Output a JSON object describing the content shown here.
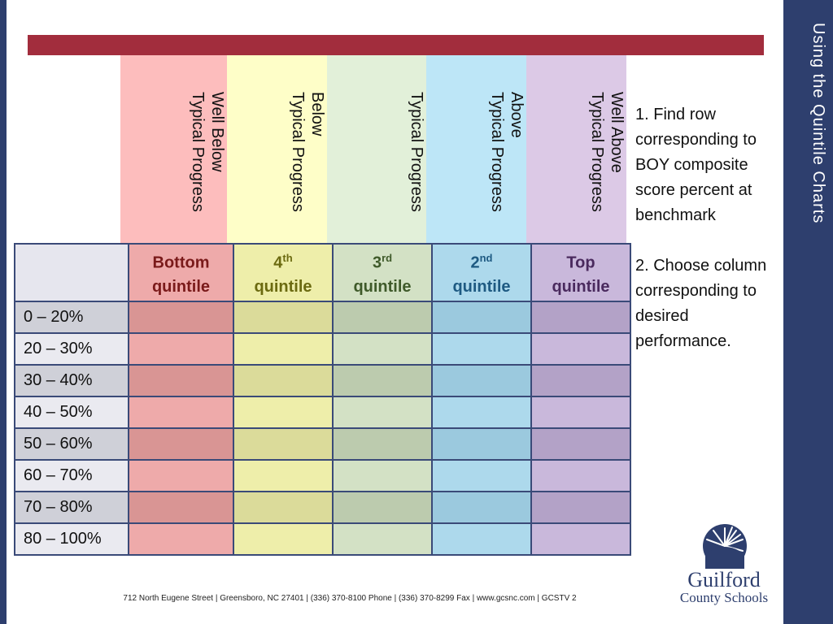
{
  "slide": {
    "title": "Using the Quintile Charts"
  },
  "progress_columns": [
    {
      "label": "Well Below\nTypical Progress",
      "color": "#fdbdbd"
    },
    {
      "label": "Below\nTypical Progress",
      "color": "#fefec8"
    },
    {
      "label": "Typical Progress",
      "color": "#e2f0d9"
    },
    {
      "label": "Above\nTypical Progress",
      "color": "#bde6f7"
    },
    {
      "label": "Well Above\nTypical Progress",
      "color": "#dcc9e6"
    }
  ],
  "quintile_headers": [
    {
      "main": "Bottom",
      "sup": "",
      "line2": "quintile",
      "color": "#7a1a1a"
    },
    {
      "main": "4",
      "sup": "th",
      "line2": "quintile",
      "color": "#6b6a10"
    },
    {
      "main": "3",
      "sup": "rd",
      "line2": "quintile",
      "color": "#3f5a2a"
    },
    {
      "main": "2",
      "sup": "nd",
      "line2": "quintile",
      "color": "#1e5a82"
    },
    {
      "main": "Top",
      "sup": "",
      "line2": "quintile",
      "color": "#4a2a5e"
    }
  ],
  "rows": [
    "0 – 20%",
    "20 – 30%",
    "30 – 40%",
    "40 – 50%",
    "50 – 60%",
    "60 – 70%",
    "70 – 80%",
    "80 – 100%"
  ],
  "instructions": [
    "1. Find row corresponding to BOY composite score percent at benchmark",
    "2. Choose column corresponding to desired performance."
  ],
  "footer": "712 North Eugene Street  |  Greensboro, NC 27401  |  (336) 370-8100 Phone   |   (336) 370-8299 Fax  |   www.gcsnc.com   |   GCSTV 2",
  "logo": {
    "line1": "Guilford",
    "line2": "County Schools"
  },
  "colors": {
    "navy": "#2e3f6e",
    "red_bar": "#a22d3d",
    "cells_dark": [
      "#d99594",
      "#dbdb9a",
      "#bccbae",
      "#9bc9de",
      "#b3a2c7"
    ],
    "cells_light": [
      "#eeaaaa",
      "#eeeeaa",
      "#d3e1c5",
      "#add9ec",
      "#c9b8db"
    ],
    "label_dark": "#cfd0d8",
    "label_light": "#eaeaf0"
  }
}
